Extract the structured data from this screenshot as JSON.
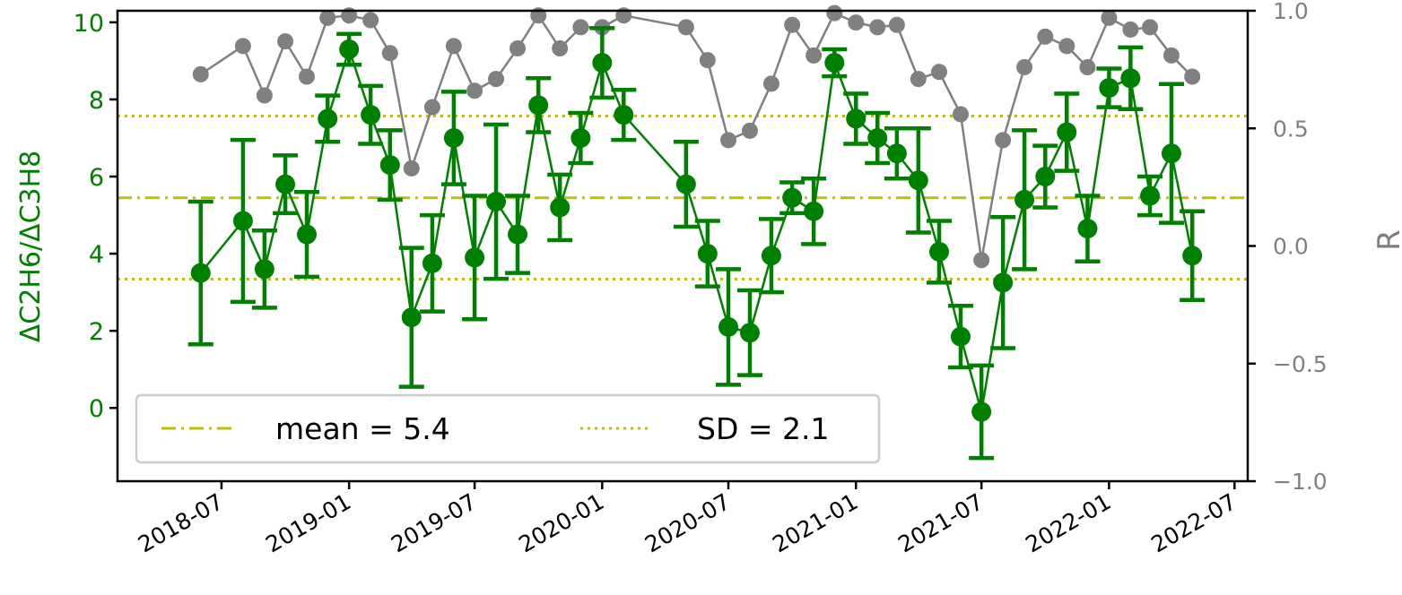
{
  "chart_data": {
    "type": "line",
    "xlabel": "",
    "ylabel_left": "ΔC2H6/ΔC3H8",
    "ylabel_right": "R",
    "x_ticks": [
      "2018-07",
      "2019-01",
      "2019-07",
      "2020-01",
      "2020-07",
      "2021-01",
      "2021-07",
      "2022-01",
      "2022-07"
    ],
    "y_left_ticks": [
      "0",
      "2",
      "4",
      "6",
      "8",
      "10"
    ],
    "y_right_ticks": [
      "−1.0",
      "−0.5",
      "0.0",
      "0.5",
      "1.0"
    ],
    "ylim_left": [
      -1.9,
      10.3
    ],
    "ylim_right": [
      -1.0,
      1.0
    ],
    "grid": false,
    "legend_position": "lower-left",
    "colors": {
      "ratio": "#008000",
      "r": "#808080",
      "reference": "#bfbf00"
    },
    "mean_line": {
      "label": "mean = 5.4",
      "value": 5.45
    },
    "sd_lines": {
      "label": "SD = 2.1",
      "upper": 7.57,
      "lower": 3.34
    },
    "series": [
      {
        "axis": "left",
        "points": [
          {
            "date": "2018-06-01",
            "y": 3.5,
            "err": 1.85
          },
          {
            "date": "2018-08-01",
            "y": 4.85,
            "err": 2.1
          },
          {
            "date": "2018-09-01",
            "y": 3.6,
            "err": 1.0
          },
          {
            "date": "2018-10-01",
            "y": 5.8,
            "err": 0.75
          },
          {
            "date": "2018-11-01",
            "y": 4.5,
            "err": 1.1
          },
          {
            "date": "2018-12-01",
            "y": 7.5,
            "err": 0.6
          },
          {
            "date": "2019-01-01",
            "y": 9.3,
            "err": 0.4
          },
          {
            "date": "2019-02-01",
            "y": 7.6,
            "err": 0.75
          },
          {
            "date": "2019-03-01",
            "y": 6.3,
            "err": 0.9
          },
          {
            "date": "2019-04-01",
            "y": 2.35,
            "err": 1.8
          },
          {
            "date": "2019-05-01",
            "y": 3.75,
            "err": 1.25
          },
          {
            "date": "2019-06-01",
            "y": 7.0,
            "err": 1.2
          },
          {
            "date": "2019-07-01",
            "y": 3.9,
            "err": 1.6
          },
          {
            "date": "2019-08-01",
            "y": 5.35,
            "err": 2.0
          },
          {
            "date": "2019-09-01",
            "y": 4.5,
            "err": 1.0
          },
          {
            "date": "2019-10-01",
            "y": 7.85,
            "err": 0.7
          },
          {
            "date": "2019-11-01",
            "y": 5.2,
            "err": 0.85
          },
          {
            "date": "2019-12-01",
            "y": 7.0,
            "err": 0.65
          },
          {
            "date": "2020-01-01",
            "y": 8.95,
            "err": 0.9
          },
          {
            "date": "2020-02-01",
            "y": 7.6,
            "err": 0.65
          },
          {
            "date": "2020-05-01",
            "y": 5.8,
            "err": 1.1
          },
          {
            "date": "2020-06-01",
            "y": 4.0,
            "err": 0.85
          },
          {
            "date": "2020-07-01",
            "y": 2.1,
            "err": 1.5
          },
          {
            "date": "2020-08-01",
            "y": 1.95,
            "err": 1.1
          },
          {
            "date": "2020-09-01",
            "y": 3.95,
            "err": 0.95
          },
          {
            "date": "2020-10-01",
            "y": 5.45,
            "err": 0.4
          },
          {
            "date": "2020-11-01",
            "y": 5.1,
            "err": 0.85
          },
          {
            "date": "2020-12-01",
            "y": 8.95,
            "err": 0.35
          },
          {
            "date": "2021-01-01",
            "y": 7.5,
            "err": 0.65
          },
          {
            "date": "2021-02-01",
            "y": 7.0,
            "err": 0.65
          },
          {
            "date": "2021-03-01",
            "y": 6.6,
            "err": 0.65
          },
          {
            "date": "2021-04-01",
            "y": 5.9,
            "err": 1.35
          },
          {
            "date": "2021-05-01",
            "y": 4.05,
            "err": 0.8
          },
          {
            "date": "2021-06-01",
            "y": 1.85,
            "err": 0.8
          },
          {
            "date": "2021-07-01",
            "y": -0.1,
            "err": 1.2
          },
          {
            "date": "2021-08-01",
            "y": 3.25,
            "err": 1.7
          },
          {
            "date": "2021-09-01",
            "y": 5.4,
            "err": 1.8
          },
          {
            "date": "2021-10-01",
            "y": 6.0,
            "err": 0.8
          },
          {
            "date": "2021-11-01",
            "y": 7.15,
            "err": 1.0
          },
          {
            "date": "2021-12-01",
            "y": 4.65,
            "err": 0.85
          },
          {
            "date": "2022-01-01",
            "y": 8.3,
            "err": 0.5
          },
          {
            "date": "2022-02-01",
            "y": 8.55,
            "err": 0.8
          },
          {
            "date": "2022-03-01",
            "y": 5.5,
            "err": 0.5
          },
          {
            "date": "2022-04-01",
            "y": 6.6,
            "err": 1.8
          },
          {
            "date": "2022-05-01",
            "y": 3.95,
            "err": 1.15
          }
        ]
      },
      {
        "axis": "right",
        "points": [
          {
            "date": "2018-06-01",
            "y": 0.73
          },
          {
            "date": "2018-08-01",
            "y": 0.85
          },
          {
            "date": "2018-09-01",
            "y": 0.64
          },
          {
            "date": "2018-10-01",
            "y": 0.87
          },
          {
            "date": "2018-11-01",
            "y": 0.72
          },
          {
            "date": "2018-12-01",
            "y": 0.97
          },
          {
            "date": "2019-01-01",
            "y": 0.98
          },
          {
            "date": "2019-02-01",
            "y": 0.96
          },
          {
            "date": "2019-03-01",
            "y": 0.82
          },
          {
            "date": "2019-04-01",
            "y": 0.33
          },
          {
            "date": "2019-05-01",
            "y": 0.59
          },
          {
            "date": "2019-06-01",
            "y": 0.85
          },
          {
            "date": "2019-07-01",
            "y": 0.66
          },
          {
            "date": "2019-08-01",
            "y": 0.71
          },
          {
            "date": "2019-09-01",
            "y": 0.84
          },
          {
            "date": "2019-10-01",
            "y": 0.98
          },
          {
            "date": "2019-11-01",
            "y": 0.84
          },
          {
            "date": "2019-12-01",
            "y": 0.93
          },
          {
            "date": "2020-01-01",
            "y": 0.93
          },
          {
            "date": "2020-02-01",
            "y": 0.98
          },
          {
            "date": "2020-05-01",
            "y": 0.93
          },
          {
            "date": "2020-06-01",
            "y": 0.79
          },
          {
            "date": "2020-07-01",
            "y": 0.45
          },
          {
            "date": "2020-08-01",
            "y": 0.49
          },
          {
            "date": "2020-09-01",
            "y": 0.69
          },
          {
            "date": "2020-10-01",
            "y": 0.94
          },
          {
            "date": "2020-11-01",
            "y": 0.81
          },
          {
            "date": "2020-12-01",
            "y": 0.99
          },
          {
            "date": "2021-01-01",
            "y": 0.95
          },
          {
            "date": "2021-02-01",
            "y": 0.93
          },
          {
            "date": "2021-03-01",
            "y": 0.94
          },
          {
            "date": "2021-04-01",
            "y": 0.71
          },
          {
            "date": "2021-05-01",
            "y": 0.74
          },
          {
            "date": "2021-06-01",
            "y": 0.56
          },
          {
            "date": "2021-07-01",
            "y": -0.06
          },
          {
            "date": "2021-08-01",
            "y": 0.45
          },
          {
            "date": "2021-09-01",
            "y": 0.76
          },
          {
            "date": "2021-10-01",
            "y": 0.89
          },
          {
            "date": "2021-11-01",
            "y": 0.85
          },
          {
            "date": "2021-12-01",
            "y": 0.76
          },
          {
            "date": "2022-01-01",
            "y": 0.97
          },
          {
            "date": "2022-02-01",
            "y": 0.92
          },
          {
            "date": "2022-03-01",
            "y": 0.93
          },
          {
            "date": "2022-04-01",
            "y": 0.81
          },
          {
            "date": "2022-05-01",
            "y": 0.72
          }
        ]
      }
    ]
  }
}
